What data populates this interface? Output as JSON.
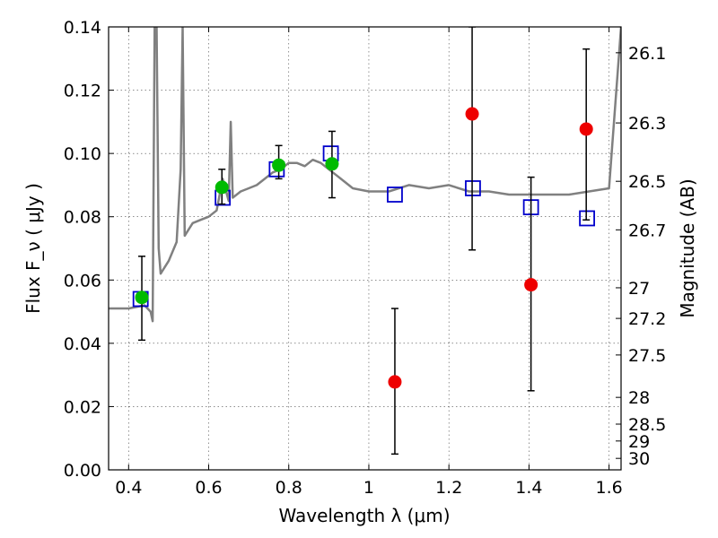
{
  "chart_data": {
    "type": "scatter",
    "title": "",
    "xlabel": "Wavelength  λ (μm)",
    "ylabel": "Flux  F_ν ( μJy )",
    "y2label": "Magnitude (AB)",
    "xlim": [
      0.35,
      1.63
    ],
    "ylim": [
      0.0,
      0.14
    ],
    "grid": true,
    "xticks": [
      0.4,
      0.6,
      0.8,
      1.0,
      1.2,
      1.4,
      1.6
    ],
    "xtick_labels": [
      "0.4",
      "0.6",
      "0.8",
      "1",
      "1.2",
      "1.4",
      "1.6"
    ],
    "yticks": [
      0.0,
      0.02,
      0.04,
      0.06,
      0.08,
      0.1,
      0.12,
      0.14
    ],
    "ytick_labels": [
      "0.00",
      "0.02",
      "0.04",
      "0.06",
      "0.08",
      "0.10",
      "0.12",
      "0.14"
    ],
    "y2ticks": [
      26.1,
      26.3,
      26.5,
      26.7,
      27,
      27.2,
      27.5,
      28,
      28.5,
      29,
      30
    ],
    "y2tick_labels": [
      "26.1",
      "26.3",
      "26.5",
      "26.7",
      "27",
      "27.2",
      "27.5",
      "28",
      "28.5",
      "29",
      "30"
    ],
    "series": [
      {
        "kind": "line",
        "color": "#808080",
        "x": [
          0.35,
          0.4,
          0.44,
          0.455,
          0.46,
          0.465,
          0.47,
          0.475,
          0.48,
          0.5,
          0.52,
          0.53,
          0.535,
          0.54,
          0.56,
          0.58,
          0.6,
          0.62,
          0.635,
          0.65,
          0.655,
          0.66,
          0.68,
          0.7,
          0.72,
          0.74,
          0.76,
          0.78,
          0.8,
          0.82,
          0.84,
          0.86,
          0.88,
          0.9,
          0.92,
          0.94,
          0.96,
          1.0,
          1.05,
          1.1,
          1.15,
          1.2,
          1.25,
          1.3,
          1.35,
          1.4,
          1.45,
          1.5,
          1.55,
          1.6,
          1.63
        ],
        "y": [
          0.051,
          0.051,
          0.052,
          0.05,
          0.047,
          0.14,
          0.14,
          0.07,
          0.062,
          0.066,
          0.072,
          0.095,
          0.14,
          0.074,
          0.078,
          0.079,
          0.08,
          0.082,
          0.092,
          0.085,
          0.11,
          0.086,
          0.088,
          0.089,
          0.09,
          0.092,
          0.094,
          0.095,
          0.097,
          0.097,
          0.096,
          0.098,
          0.097,
          0.095,
          0.093,
          0.091,
          0.089,
          0.088,
          0.088,
          0.09,
          0.089,
          0.09,
          0.088,
          0.088,
          0.087,
          0.087,
          0.087,
          0.087,
          0.088,
          0.089,
          0.14
        ]
      },
      {
        "kind": "open-square",
        "color": "#0000cc",
        "x": [
          0.43,
          0.635,
          0.77,
          0.905,
          1.065,
          1.26,
          1.405,
          1.545
        ],
        "y": [
          0.054,
          0.086,
          0.095,
          0.1,
          0.087,
          0.089,
          0.083,
          0.0795
        ]
      },
      {
        "kind": "filled-circle",
        "color": "#00bb00",
        "x": [
          0.433,
          0.633,
          0.775,
          0.908
        ],
        "y": [
          0.0545,
          0.0893,
          0.0963,
          0.0967
        ],
        "yerr_low": [
          0.0135,
          0.0053,
          0.0043,
          0.0107
        ],
        "yerr_high": [
          0.013,
          0.0057,
          0.0062,
          0.0103
        ]
      },
      {
        "kind": "filled-circle",
        "color": "#ee0000",
        "x": [
          1.065,
          1.258,
          1.405,
          1.543
        ],
        "y": [
          0.0278,
          0.1125,
          0.0585,
          0.1077
        ],
        "yerr_low": [
          0.0228,
          0.043,
          0.0335,
          0.0287
        ],
        "yerr_high": [
          0.0232,
          0.0275,
          0.034,
          0.0253
        ]
      }
    ]
  }
}
